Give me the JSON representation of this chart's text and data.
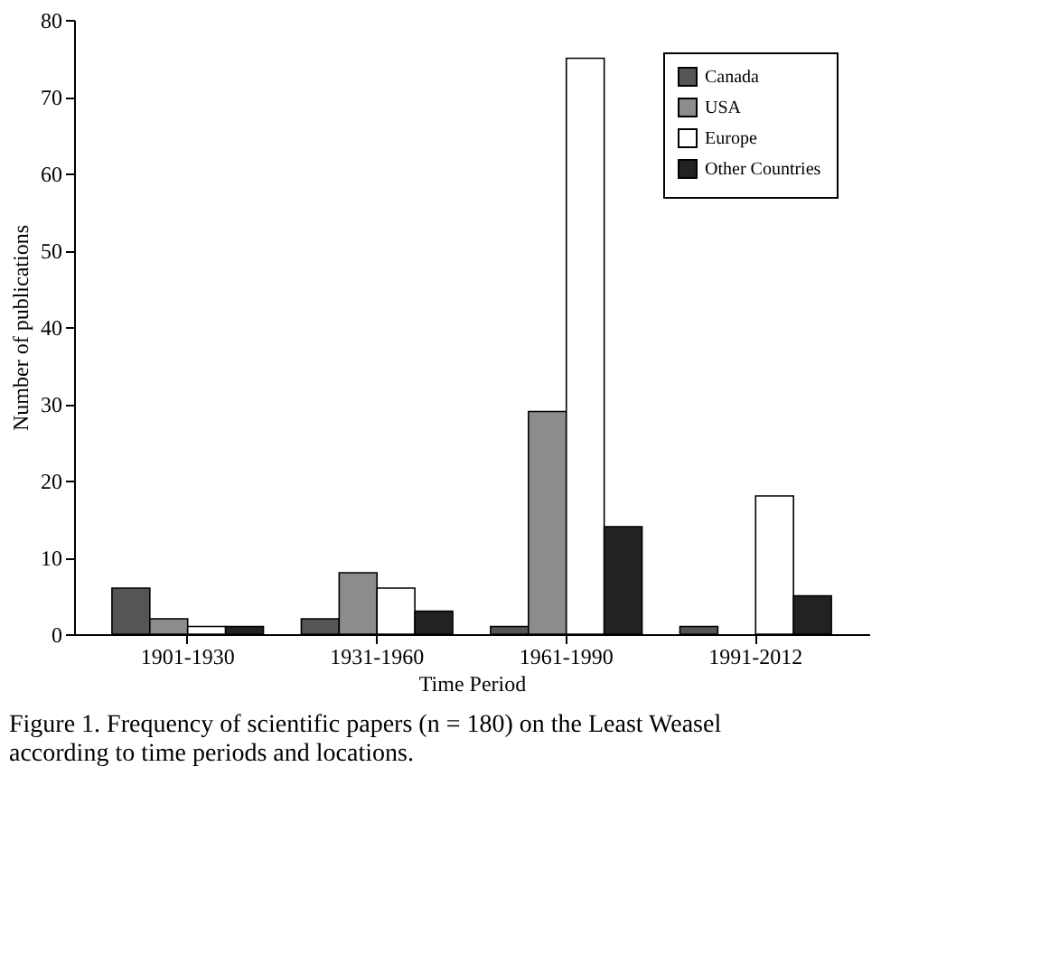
{
  "chart_data": {
    "type": "bar",
    "xlabel": "Time Period",
    "ylabel": "Number of publications",
    "categories": [
      "1901-1930",
      "1931-1960",
      "1961-1990",
      "1991-2012"
    ],
    "series": [
      {
        "name": "Canada",
        "color": "#555555",
        "values": [
          6,
          2,
          1,
          1
        ]
      },
      {
        "name": "USA",
        "color": "#8c8c8c",
        "values": [
          2,
          8,
          29,
          0
        ]
      },
      {
        "name": "Europe",
        "color": "#ffffff",
        "values": [
          1,
          6,
          75,
          18
        ]
      },
      {
        "name": "Other Countries",
        "color": "#222222",
        "values": [
          1,
          3,
          14,
          5
        ]
      }
    ],
    "ylim": [
      0,
      80
    ],
    "yticks": [
      0,
      10,
      20,
      30,
      40,
      50,
      60,
      70,
      80
    ],
    "grid": false,
    "legend": "top right",
    "annotations": [
      "Figure 1. Frequency of scientific papers (n = 180) on the Least Weasel",
      "according to time periods and locations."
    ]
  }
}
